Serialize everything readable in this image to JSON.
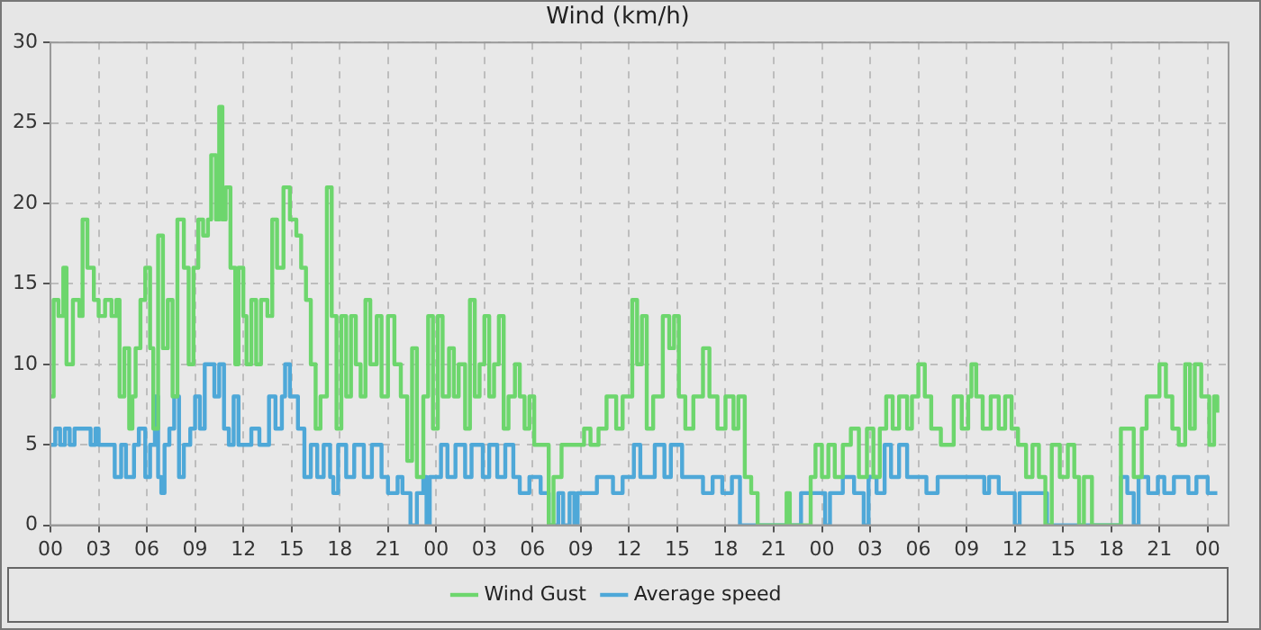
{
  "chart_data": {
    "type": "step",
    "title": "Wind (km/h)",
    "xlim": [
      0,
      73.3
    ],
    "xticks": [
      {
        "value": 0,
        "label": "00"
      },
      {
        "value": 3,
        "label": "03"
      },
      {
        "value": 6,
        "label": "06"
      },
      {
        "value": 9,
        "label": "09"
      },
      {
        "value": 12,
        "label": "12"
      },
      {
        "value": 15,
        "label": "15"
      },
      {
        "value": 18,
        "label": "18"
      },
      {
        "value": 21,
        "label": "21"
      },
      {
        "value": 24,
        "label": "00"
      },
      {
        "value": 27,
        "label": "03"
      },
      {
        "value": 30,
        "label": "06"
      },
      {
        "value": 33,
        "label": "09"
      },
      {
        "value": 36,
        "label": "12"
      },
      {
        "value": 39,
        "label": "15"
      },
      {
        "value": 42,
        "label": "18"
      },
      {
        "value": 45,
        "label": "21"
      },
      {
        "value": 48,
        "label": "00"
      },
      {
        "value": 51,
        "label": "03"
      },
      {
        "value": 54,
        "label": "06"
      },
      {
        "value": 57,
        "label": "09"
      },
      {
        "value": 60,
        "label": "12"
      },
      {
        "value": 63,
        "label": "15"
      },
      {
        "value": 66,
        "label": "18"
      },
      {
        "value": 69,
        "label": "21"
      },
      {
        "value": 72,
        "label": "00"
      }
    ],
    "ylim": [
      0,
      30
    ],
    "yticks": [
      0,
      5,
      10,
      15,
      20,
      25,
      30
    ],
    "grid": true,
    "legend": "bottom",
    "line_style": "solid",
    "marker": "none",
    "series": [
      {
        "name": "Wind Gust",
        "color": "#6dd66d",
        "x": [
          0,
          0.2,
          0.5,
          0.8,
          1.0,
          1.4,
          1.8,
          2.0,
          2.3,
          2.7,
          3.0,
          3.4,
          3.8,
          4.1,
          4.3,
          4.6,
          4.9,
          5.1,
          5.3,
          5.6,
          5.9,
          6.2,
          6.4,
          6.7,
          7.0,
          7.3,
          7.6,
          7.9,
          8.3,
          8.6,
          8.9,
          9.2,
          9.5,
          9.8,
          10.0,
          10.3,
          10.5,
          10.7,
          10.9,
          11.2,
          11.5,
          11.7,
          12.0,
          12.2,
          12.5,
          12.8,
          13.1,
          13.5,
          13.8,
          14.1,
          14.5,
          14.9,
          15.3,
          15.6,
          15.9,
          16.2,
          16.5,
          16.8,
          17.2,
          17.5,
          17.8,
          18.1,
          18.4,
          18.7,
          19.0,
          19.3,
          19.6,
          19.9,
          20.3,
          20.6,
          21.0,
          21.4,
          21.8,
          22.2,
          22.5,
          22.8,
          23.2,
          23.5,
          23.8,
          24.1,
          24.4,
          24.8,
          25.1,
          25.4,
          25.8,
          26.1,
          26.4,
          26.7,
          27.0,
          27.3,
          27.6,
          27.9,
          28.2,
          28.5,
          28.9,
          29.2,
          29.5,
          29.8,
          30.1,
          31.0,
          31.3,
          31.8,
          33.2,
          33.6,
          34.1,
          34.6,
          35.2,
          35.6,
          36.2,
          36.5,
          36.8,
          37.1,
          37.5,
          38.1,
          38.5,
          38.8,
          39.1,
          39.5,
          40.0,
          40.6,
          41.0,
          41.5,
          42.0,
          42.5,
          42.8,
          43.2,
          43.6,
          44.0,
          45.8,
          46.0,
          47.3,
          47.6,
          48.0,
          48.4,
          48.8,
          49.3,
          49.8,
          50.3,
          50.8,
          51.2,
          51.6,
          52.0,
          52.4,
          52.8,
          53.3,
          53.6,
          54.0,
          54.4,
          54.8,
          55.4,
          56.2,
          56.7,
          57.1,
          57.3,
          57.6,
          58.0,
          58.5,
          59.0,
          59.4,
          59.8,
          60.2,
          60.7,
          61.1,
          61.5,
          61.9,
          62.3,
          62.8,
          63.3,
          63.7,
          64.0,
          64.3,
          64.8,
          66.6,
          67.4,
          67.9,
          68.2,
          69.0,
          69.4,
          69.8,
          70.2,
          70.6,
          70.9,
          71.2,
          71.6,
          72.1,
          72.4,
          72.6
        ],
        "values": [
          8,
          14,
          13,
          16,
          10,
          14,
          13,
          19,
          16,
          14,
          13,
          14,
          13,
          14,
          8,
          11,
          6,
          8,
          11,
          14,
          16,
          11,
          6,
          18,
          11,
          14,
          8,
          19,
          16,
          10,
          16,
          19,
          18,
          19,
          23,
          19,
          26,
          19,
          21,
          16,
          10,
          16,
          13,
          10,
          14,
          10,
          14,
          13,
          19,
          16,
          21,
          19,
          18,
          16,
          14,
          10,
          6,
          8,
          21,
          13,
          6,
          13,
          8,
          13,
          10,
          8,
          14,
          10,
          13,
          8,
          13,
          10,
          8,
          4,
          11,
          3,
          8,
          13,
          6,
          13,
          8,
          11,
          8,
          10,
          6,
          14,
          8,
          10,
          13,
          8,
          10,
          13,
          6,
          8,
          10,
          8,
          6,
          8,
          5,
          0,
          3,
          5,
          6,
          5,
          6,
          8,
          6,
          8,
          14,
          10,
          13,
          6,
          8,
          13,
          11,
          13,
          8,
          6,
          8,
          11,
          8,
          6,
          8,
          6,
          8,
          3,
          2,
          0,
          2,
          0,
          3,
          5,
          3,
          5,
          3,
          5,
          6,
          3,
          6,
          3,
          6,
          8,
          6,
          8,
          6,
          8,
          10,
          8,
          6,
          5,
          8,
          6,
          8,
          10,
          8,
          6,
          8,
          6,
          8,
          6,
          5,
          3,
          5,
          3,
          0,
          5,
          3,
          5,
          3,
          0,
          3,
          0,
          6,
          3,
          6,
          8,
          10,
          8,
          6,
          5,
          10,
          6,
          10,
          8,
          5,
          8,
          7
        ]
      },
      {
        "name": "Average speed",
        "color": "#4ea8d8",
        "x": [
          0,
          0.3,
          0.6,
          0.9,
          1.2,
          1.5,
          2.5,
          2.8,
          3.0,
          4.0,
          4.4,
          4.7,
          5.2,
          5.5,
          5.9,
          6.2,
          6.5,
          6.7,
          6.9,
          7.1,
          7.4,
          7.7,
          8.0,
          8.3,
          8.7,
          9.0,
          9.3,
          9.6,
          10.2,
          10.5,
          10.8,
          11.1,
          11.4,
          11.7,
          12.5,
          13.0,
          13.6,
          14.0,
          14.4,
          14.6,
          14.9,
          15.4,
          15.8,
          16.2,
          16.6,
          17.0,
          17.4,
          17.6,
          17.9,
          18.4,
          18.9,
          19.5,
          20.0,
          20.6,
          21.0,
          21.6,
          21.9,
          22.4,
          22.8,
          23.2,
          23.4,
          23.6,
          24.3,
          24.7,
          25.2,
          25.8,
          26.2,
          26.9,
          27.3,
          27.8,
          28.3,
          28.8,
          29.2,
          29.8,
          30.5,
          31.0,
          31.6,
          31.9,
          32.3,
          32.6,
          32.8,
          34.0,
          35.0,
          35.6,
          36.3,
          36.7,
          37.6,
          38.2,
          38.6,
          39.3,
          40.6,
          41.2,
          41.8,
          42.4,
          42.9,
          46.7,
          47.8,
          48.2,
          48.5,
          49.3,
          50.0,
          50.6,
          50.9,
          51.4,
          51.9,
          52.3,
          52.8,
          53.3,
          54.5,
          55.2,
          57.5,
          58.1,
          58.4,
          59.0,
          60.0,
          60.3,
          62.0,
          66.6,
          67.0,
          67.4,
          67.7,
          68.3,
          68.9,
          69.3,
          69.9,
          70.8,
          71.3,
          72.0,
          72.6
        ],
        "values": [
          5,
          6,
          5,
          6,
          5,
          6,
          5,
          6,
          5,
          3,
          5,
          3,
          5,
          6,
          3,
          5,
          8,
          3,
          2,
          5,
          6,
          8,
          3,
          5,
          6,
          8,
          6,
          10,
          8,
          10,
          6,
          5,
          8,
          5,
          6,
          5,
          8,
          6,
          8,
          10,
          8,
          6,
          3,
          5,
          3,
          5,
          3,
          2,
          5,
          3,
          5,
          3,
          5,
          3,
          2,
          3,
          2,
          0,
          2,
          3,
          0,
          3,
          5,
          3,
          5,
          3,
          5,
          3,
          5,
          3,
          5,
          3,
          2,
          3,
          2,
          0,
          2,
          0,
          2,
          0,
          2,
          3,
          2,
          3,
          5,
          3,
          5,
          3,
          5,
          3,
          2,
          3,
          2,
          3,
          0,
          2,
          2,
          0,
          2,
          3,
          2,
          0,
          3,
          2,
          5,
          3,
          5,
          3,
          2,
          3,
          3,
          2,
          3,
          2,
          0,
          2,
          0,
          3,
          2,
          0,
          3,
          2,
          3,
          2,
          3,
          2,
          3,
          2,
          2
        ]
      }
    ]
  }
}
